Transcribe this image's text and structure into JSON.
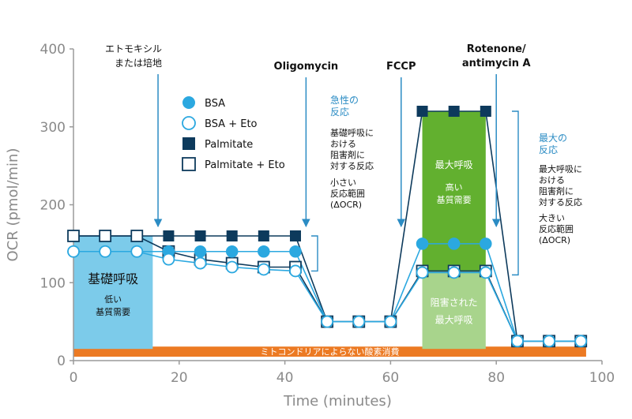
{
  "chart_data": {
    "type": "line",
    "xlabel": "Time (minutes)",
    "ylabel": "OCR (pmol/min)",
    "xlim": [
      0,
      100
    ],
    "ylim": [
      0,
      400
    ],
    "xticks": [
      0,
      20,
      40,
      60,
      80,
      100
    ],
    "yticks": [
      0,
      100,
      200,
      300,
      400
    ],
    "grid": false,
    "legend_position": "upper-left inside plot",
    "colors": {
      "axis": "#9a9a9a",
      "dark_blue": "#0d3a5c",
      "light_blue": "#2ba8e0",
      "basal_fill": "#7ccbea",
      "max_fill": "#62b02f",
      "inhibited_fill": "#a8d48c",
      "baseline_bar": "#ec7a23",
      "annotation_blue": "#2b8cc4",
      "text_dark": "#111111"
    },
    "x": [
      0,
      6,
      12,
      18,
      24,
      30,
      36,
      42,
      48,
      54,
      60,
      66,
      72,
      78,
      84,
      90,
      96
    ],
    "series": [
      {
        "name": "BSA",
        "marker": "circle-filled",
        "color": "light_blue",
        "values": [
          140,
          140,
          140,
          140,
          140,
          140,
          140,
          140,
          50,
          50,
          50,
          150,
          150,
          150,
          25,
          25,
          25
        ]
      },
      {
        "name": "BSA + Eto",
        "marker": "circle-open",
        "color": "light_blue",
        "values": [
          140,
          140,
          140,
          130,
          125,
          120,
          117,
          115,
          50,
          50,
          50,
          113,
          113,
          113,
          25,
          25,
          25
        ]
      },
      {
        "name": "Palmitate",
        "marker": "square-filled",
        "color": "dark_blue",
        "values": [
          160,
          160,
          160,
          160,
          160,
          160,
          160,
          160,
          50,
          50,
          50,
          320,
          320,
          320,
          25,
          25,
          25
        ]
      },
      {
        "name": "Palmitate + Eto",
        "marker": "square-open",
        "color": "dark_blue",
        "values": [
          160,
          160,
          160,
          140,
          130,
          125,
          120,
          120,
          50,
          50,
          50,
          115,
          115,
          115,
          25,
          25,
          25
        ]
      }
    ],
    "injections": [
      {
        "time": 16,
        "label": [
          "エトモキシル",
          "または培地"
        ],
        "bold": false
      },
      {
        "time": 44,
        "label": [
          "Oligomycin"
        ],
        "bold": true
      },
      {
        "time": 62,
        "label": [
          "FCCP"
        ],
        "bold": true
      },
      {
        "time": 80,
        "label": [
          "Rotenone/",
          "antimycin A"
        ],
        "bold": true
      }
    ],
    "regions": [
      {
        "id": "basal",
        "x": [
          0,
          15
        ],
        "y": [
          15,
          160
        ],
        "color": "basal_fill",
        "title": "基礎呼吸",
        "sub": [
          "低い",
          "基質需要"
        ]
      },
      {
        "id": "max",
        "x": [
          66,
          78
        ],
        "y": [
          115,
          320
        ],
        "color": "max_fill",
        "title": "最大呼吸",
        "sub": [
          "高い",
          "基質需要"
        ]
      },
      {
        "id": "inhibited",
        "x": [
          66,
          78
        ],
        "y": [
          15,
          115
        ],
        "color": "inhibited_fill",
        "title": "",
        "sub": [
          "阻害された",
          "最大呼吸"
        ]
      }
    ],
    "baseline_bar": {
      "x": [
        0,
        97
      ],
      "y": [
        5,
        18
      ],
      "label": "ミトコンドリアによらない酸素消費"
    },
    "annotations": [
      {
        "id": "acute",
        "heading": [
          "急性の",
          "反応"
        ],
        "body": [
          "基礎呼吸に",
          "おける",
          "阻害剤に",
          "対する反応"
        ],
        "range_text": [
          "小さい",
          "反応範囲",
          "(ΔOCR)"
        ],
        "bracket_y": [
          115,
          160
        ]
      },
      {
        "id": "maximal",
        "heading": [
          "最大の",
          "反応"
        ],
        "body": [
          "最大呼吸に",
          "おける",
          "阻害剤に",
          "対する反応"
        ],
        "range_text": [
          "大きい",
          "反応範囲",
          "(ΔOCR)"
        ],
        "bracket_y": [
          110,
          320
        ]
      }
    ]
  }
}
